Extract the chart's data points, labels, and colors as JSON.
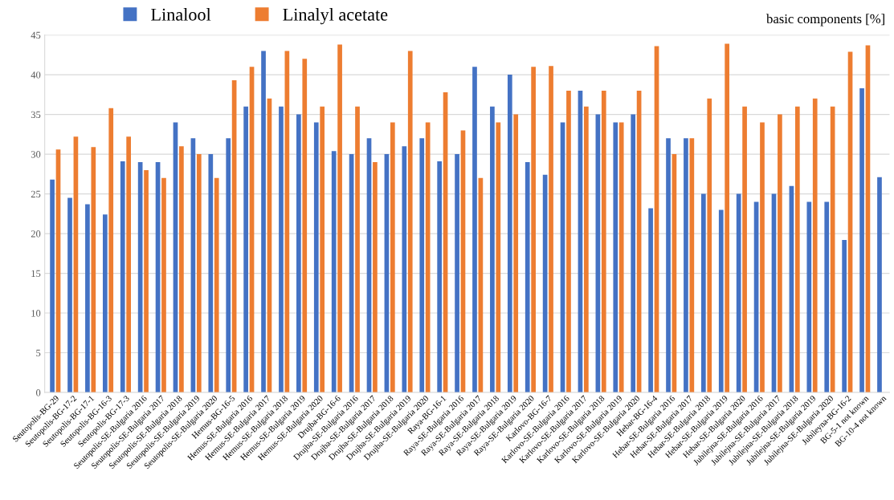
{
  "chart_data": {
    "type": "bar",
    "ylabel": "basic components [%]",
    "categories": [
      "Seutopolis-BG-29",
      "Seutopolis-BG-17-2",
      "Seutopolis-BG-17-1",
      "Seutopolis-BG-16-3",
      "Seutopolis-BG-17-3",
      "Seutopolis-SE-Bulgaria 2016",
      "Seutopolis-SE-Bulgaria 2017",
      "Seutopolis-SE-Bulgaria 2018",
      "Seutopolis-SE-Bulgaria 2019",
      "Seutopolis-SE-Bulgaria 2020",
      "Hemus-BG-16-5",
      "Hemus-SE-Bulgaria 2016",
      "Hemus-SE-Bulgaria 2017",
      "Hemus-SE-Bulgaria 2018",
      "Hemus-SE-Bulgaria 2019",
      "Hemus-SE-Bulgaria 2020",
      "Drujba-BG-16-6",
      "Drujba-SE-Bulgaria 2016",
      "Drujba-SE-Bulgaria 2017",
      "Drujba-SE-Bulgaria 2018",
      "Drujba-SE-Bulgaria 2019",
      "Drujba-SE-Bulgaria 2020",
      "Raya-BG-16-1",
      "Raya-SE-Bulgaria 2016",
      "Raya-SE-Bulgaria 2017",
      "Raya-SE-Bulgaria 2018",
      "Raya-SE-Bulgaria 2019",
      "Raya-SE-Bulgaria 2020",
      "Karlovo-BG-16-7",
      "Karlovo-SE-Bulgaria 2016",
      "Karlovo-SE-Bulgaria 2017",
      "Karlovo-SE-Bulgaria 2018",
      "Karlovo-SE-Bulgaria 2019",
      "Karlovo-SE-Bulgaria 2020",
      "Hebar-BG-16-4",
      "Hebar-SE-Bulgaria 2016",
      "Hebar-SE-Bulgaria 2017",
      "Hebar-SE-Bulgaria 2018",
      "Hebar-SE-Bulgaria 2019",
      "Hebar-SE-Bulgaria 2020",
      "Jubilejna-SE-Bulgaria 2016",
      "Jubilejna-SE-Bulgaria 2017",
      "Jubilejna-SE-Bulgaria 2018",
      "Jubilejna-SE-Bulgaria 2019",
      "Jubilejna-SE-Bulgaria 2020",
      "Jubileyna-BG-16-2",
      "BG-5-1 not known",
      "BG-10-4 not known"
    ],
    "series": [
      {
        "name": "Linalool",
        "color": "#4472c4",
        "values": [
          26.8,
          24.5,
          23.7,
          22.4,
          29.1,
          29,
          29,
          34,
          32,
          30,
          32,
          36,
          43,
          36,
          35,
          34,
          30.4,
          30,
          32,
          30,
          31,
          32,
          29.1,
          30,
          41,
          36,
          40,
          29,
          27.4,
          34,
          38,
          35,
          34,
          35,
          23.2,
          32,
          32,
          25,
          23,
          25,
          24,
          25,
          26,
          24,
          24,
          19.2,
          38.3,
          27.1
        ]
      },
      {
        "name": "Linalyl acetate",
        "color": "#ed7d31",
        "values": [
          30.6,
          32.2,
          30.9,
          35.8,
          32.2,
          28,
          27,
          31,
          30,
          27,
          39.3,
          41,
          37,
          43,
          42,
          36,
          43.8,
          36,
          29,
          34,
          43,
          34,
          37.8,
          33,
          27,
          34,
          35,
          41,
          41.1,
          38,
          36,
          38,
          34,
          38,
          43.6,
          30,
          32,
          37,
          43.9,
          36,
          34,
          35,
          36,
          37,
          36,
          42.9,
          43.7,
          null
        ]
      }
    ],
    "ylim": [
      0,
      45
    ],
    "yticks": [
      0,
      5,
      10,
      15,
      20,
      25,
      30,
      35,
      40,
      45
    ],
    "grid": "y",
    "legend": "top"
  }
}
